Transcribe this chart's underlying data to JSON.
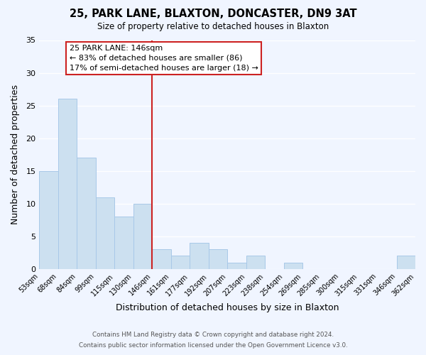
{
  "title": "25, PARK LANE, BLAXTON, DONCASTER, DN9 3AT",
  "subtitle": "Size of property relative to detached houses in Blaxton",
  "xlabel": "Distribution of detached houses by size in Blaxton",
  "ylabel": "Number of detached properties",
  "bar_color": "#cce0f0",
  "bar_edge_color": "#a8c8e8",
  "background_color": "#f0f5ff",
  "bins": [
    "53sqm",
    "68sqm",
    "84sqm",
    "99sqm",
    "115sqm",
    "130sqm",
    "146sqm",
    "161sqm",
    "177sqm",
    "192sqm",
    "207sqm",
    "223sqm",
    "238sqm",
    "254sqm",
    "269sqm",
    "285sqm",
    "300sqm",
    "315sqm",
    "331sqm",
    "346sqm",
    "362sqm"
  ],
  "values": [
    15,
    26,
    17,
    11,
    8,
    10,
    3,
    2,
    4,
    3,
    1,
    2,
    0,
    1,
    0,
    0,
    0,
    0,
    0,
    2
  ],
  "marker_bin_index": 6,
  "ylim": [
    0,
    35
  ],
  "yticks": [
    0,
    5,
    10,
    15,
    20,
    25,
    30,
    35
  ],
  "annotation_title": "25 PARK LANE: 146sqm",
  "annotation_line1": "← 83% of detached houses are smaller (86)",
  "annotation_line2": "17% of semi-detached houses are larger (18) →",
  "footer1": "Contains HM Land Registry data © Crown copyright and database right 2024.",
  "footer2": "Contains public sector information licensed under the Open Government Licence v3.0.",
  "grid_color": "#ffffff",
  "marker_line_color": "#cc2222"
}
